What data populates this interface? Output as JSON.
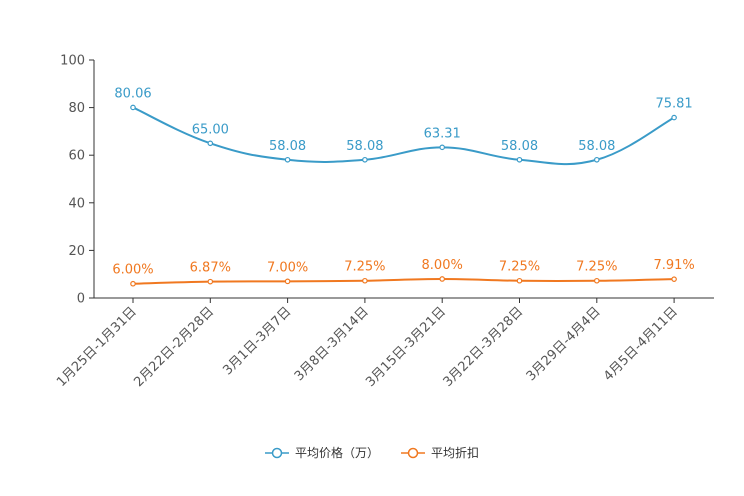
{
  "chart_data": {
    "type": "line",
    "categories": [
      "1月25日-1月31日",
      "2月22日-2月28日",
      "3月1日-3月7日",
      "3月8日-3月14日",
      "3月15日-3月21日",
      "3月22日-3月28日",
      "3月29日-4月4日",
      "4月5日-4月11日"
    ],
    "ylim": [
      0,
      100
    ],
    "yticks": [
      0,
      20,
      40,
      60,
      80,
      100
    ],
    "series": [
      {
        "name": "平均价格（万）",
        "color": "#3a9bc8",
        "values": [
          80.06,
          65.0,
          58.08,
          58.08,
          63.31,
          58.08,
          58.08,
          75.81
        ],
        "labels": [
          "80.06",
          "65.00",
          "58.08",
          "58.08",
          "63.31",
          "58.08",
          "58.08",
          "75.81"
        ]
      },
      {
        "name": "平均折扣",
        "color": "#f07820",
        "values": [
          6.0,
          6.87,
          7.0,
          7.25,
          8.0,
          7.25,
          7.25,
          7.91
        ],
        "labels": [
          "6.00%",
          "6.87%",
          "7.00%",
          "7.25%",
          "8.00%",
          "7.25%",
          "7.25%",
          "7.91%"
        ]
      }
    ]
  },
  "legend": {
    "price": "平均价格（万）",
    "discount": "平均折扣"
  }
}
